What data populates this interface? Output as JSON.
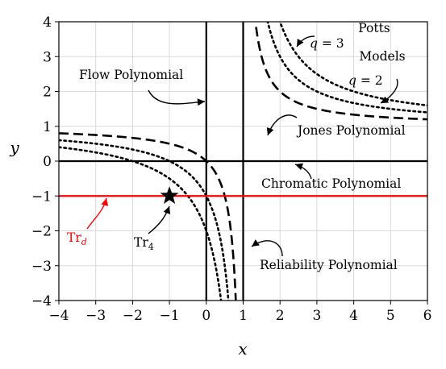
{
  "chart_data": {
    "type": "line",
    "title": "",
    "xlabel": "x",
    "ylabel": "y",
    "xlim": [
      -4,
      6
    ],
    "ylim": [
      -4,
      4
    ],
    "xticks": [
      -4,
      -3,
      -2,
      -1,
      0,
      1,
      2,
      3,
      4,
      5,
      6
    ],
    "yticks": [
      -4,
      -3,
      -2,
      -1,
      0,
      1,
      2,
      3,
      4
    ],
    "xtick_labels": [
      "−4",
      "−3",
      "−2",
      "−1",
      "0",
      "1",
      "2",
      "3",
      "4",
      "5",
      "6"
    ],
    "ytick_labels": [
      "−4",
      "−3",
      "−2",
      "−1",
      "0",
      "1",
      "2",
      "3",
      "4"
    ],
    "grid": true,
    "series": [
      {
        "id": "jones",
        "curve": "(x-1)(y-1)=1",
        "style": "dashed",
        "color": "#000000"
      },
      {
        "id": "potts_q2",
        "curve": "(x-1)(y-1)=2",
        "style": "dotted",
        "color": "#000000"
      },
      {
        "id": "potts_q3",
        "curve": "(x-1)(y-1)=3",
        "style": "dotted",
        "color": "#000000"
      },
      {
        "id": "vertical_x0",
        "curve": "x=0",
        "style": "solid",
        "color": "#000000"
      },
      {
        "id": "vertical_x1",
        "curve": "x=1",
        "style": "solid",
        "color": "#000000"
      },
      {
        "id": "horizontal_y0",
        "curve": "y=0",
        "style": "solid",
        "color": "#000000"
      },
      {
        "id": "trd",
        "curve": "y=-1",
        "style": "solid",
        "color": "#ff0000"
      }
    ],
    "markers": [
      {
        "x": -1,
        "y": -1,
        "shape": "star",
        "color": "#000000"
      }
    ],
    "annotations": [
      {
        "text": "Flow Polynomial",
        "color": "#000000"
      },
      {
        "text": "Potts",
        "color": "#000000"
      },
      {
        "text": "Models",
        "color": "#000000"
      },
      {
        "text_main": "q",
        "text_rest": " = 3",
        "color": "#000000"
      },
      {
        "text_main": "q",
        "text_rest": " = 2",
        "color": "#000000"
      },
      {
        "text": "Jones Polynomial",
        "color": "#000000"
      },
      {
        "text": "Chromatic Polynomial",
        "color": "#000000"
      },
      {
        "text": "Reliability Polynomial",
        "color": "#000000"
      },
      {
        "text_main": "Tr",
        "text_sub": "4",
        "color": "#000000"
      },
      {
        "text_main": "Tr",
        "text_sub": "d",
        "color": "#ff0000"
      }
    ]
  }
}
